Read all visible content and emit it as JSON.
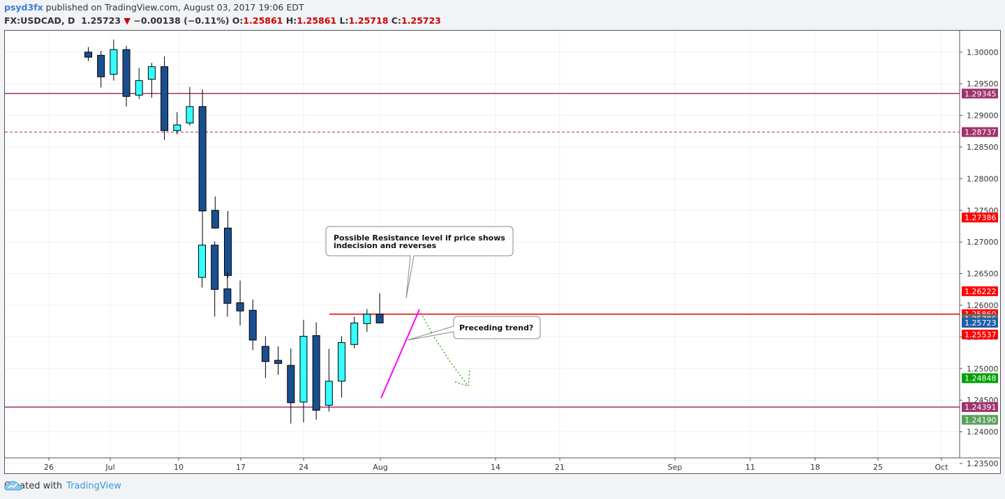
{
  "header": {
    "user": "psyd3fx",
    "published": "published on TradingView.com, August 03, 2017 19:06 EDT",
    "symbol": "FX:USDCAD, D",
    "last": "1.25723",
    "arrow": "▼",
    "change": "−0.00138 (−0.11%)",
    "o_label": "O:",
    "o": "1.25861",
    "h_label": "H:",
    "h": "1.25861",
    "l_label": "L:",
    "l": "1.25718",
    "c_label": "C:",
    "c": "1.25723"
  },
  "footer": {
    "created": "Created with",
    "brand": "TradingView",
    "logo_icon": "tradingview-cloud-icon"
  },
  "colors": {
    "bear": "#1a4f8f",
    "bull": "#33ffff",
    "support": "#a0336b",
    "resistance": "#e00000",
    "trend": "#ff00ff",
    "arrow": "#44aa22"
  },
  "chart_data": {
    "type": "candlestick",
    "ylim": [
      1.232,
      1.302
    ],
    "y_ticks": [
      "1.30000",
      "1.29500",
      "1.29000",
      "1.28500",
      "1.28000",
      "1.27500",
      "1.27000",
      "1.26500",
      "1.26000",
      "1.25500",
      "1.25000",
      "1.24500",
      "1.24000",
      "1.23500"
    ],
    "x_ticks": [
      "26",
      "Jul",
      "10",
      "17",
      "24",
      "Aug",
      "14",
      "21",
      "Sep",
      "11",
      "18",
      "25",
      "Oct"
    ],
    "candles": [
      {
        "o": 1.3,
        "h": 1.3008,
        "l": 1.2986,
        "c": 1.2992
      },
      {
        "o": 1.2995,
        "h": 1.3002,
        "l": 1.2944,
        "c": 1.2961
      },
      {
        "o": 1.2965,
        "h": 1.302,
        "l": 1.2955,
        "c": 1.3004
      },
      {
        "o": 1.3004,
        "h": 1.301,
        "l": 1.2914,
        "c": 1.293
      },
      {
        "o": 1.2932,
        "h": 1.2975,
        "l": 1.2926,
        "c": 1.2955
      },
      {
        "o": 1.2957,
        "h": 1.2983,
        "l": 1.2928,
        "c": 1.2977
      },
      {
        "o": 1.2977,
        "h": 1.2993,
        "l": 1.2861,
        "c": 1.2876
      },
      {
        "o": 1.2876,
        "h": 1.2905,
        "l": 1.287,
        "c": 1.2885
      },
      {
        "o": 1.2888,
        "h": 1.2945,
        "l": 1.2884,
        "c": 1.2914
      },
      {
        "o": 1.2914,
        "h": 1.2941,
        "l": 1.2679,
        "c": 1.2749
      },
      {
        "o": 1.275,
        "h": 1.2772,
        "l": 1.2721,
        "c": 1.2722
      },
      {
        "o": 1.2722,
        "h": 1.2749,
        "l": 1.2643,
        "c": 1.2647
      },
      {
        "o": 1.2644,
        "h": 1.2696,
        "l": 1.2628,
        "c": 1.2695
      },
      {
        "o": 1.2695,
        "h": 1.2701,
        "l": 1.2582,
        "c": 1.2625
      },
      {
        "o": 1.2626,
        "h": 1.2652,
        "l": 1.2582,
        "c": 1.2603
      },
      {
        "o": 1.2604,
        "h": 1.2639,
        "l": 1.2568,
        "c": 1.2591
      },
      {
        "o": 1.2592,
        "h": 1.2609,
        "l": 1.2529,
        "c": 1.2545
      },
      {
        "o": 1.2535,
        "h": 1.2551,
        "l": 1.2485,
        "c": 1.2511
      },
      {
        "o": 1.2513,
        "h": 1.2535,
        "l": 1.249,
        "c": 1.2508
      },
      {
        "o": 1.2505,
        "h": 1.2532,
        "l": 1.2413,
        "c": 1.2446
      },
      {
        "o": 1.2447,
        "h": 1.2577,
        "l": 1.2415,
        "c": 1.2551
      },
      {
        "o": 1.2552,
        "h": 1.2573,
        "l": 1.2419,
        "c": 1.2434
      },
      {
        "o": 1.2442,
        "h": 1.2531,
        "l": 1.2432,
        "c": 1.248
      },
      {
        "o": 1.248,
        "h": 1.2551,
        "l": 1.2454,
        "c": 1.2541
      },
      {
        "o": 1.2538,
        "h": 1.2582,
        "l": 1.2532,
        "c": 1.2572
      },
      {
        "o": 1.2571,
        "h": 1.2594,
        "l": 1.2558,
        "c": 1.2586
      },
      {
        "o": 1.2586,
        "h": 1.2619,
        "l": 1.2572,
        "c": 1.2572
      }
    ],
    "horizontal_lines": [
      {
        "name": "support-top",
        "value": 1.29345,
        "style": "solid",
        "color": "#a0336b"
      },
      {
        "name": "dashed-level",
        "value": 1.28737,
        "style": "dashed",
        "color": "#a0336b"
      },
      {
        "name": "support-bottom",
        "value": 1.24391,
        "style": "solid",
        "color": "#a0336b"
      },
      {
        "name": "resistance",
        "value": 1.2586,
        "style": "solid",
        "color": "#e00000"
      }
    ],
    "price_labels": [
      {
        "text": "1.29345",
        "value": 1.29345,
        "color": "#a0336b"
      },
      {
        "text": "1.28737",
        "value": 1.28737,
        "color": "#a0336b"
      },
      {
        "text": "1.27386",
        "value": 1.27386,
        "color": "#ff0000"
      },
      {
        "text": "1.26222",
        "value": 1.26222,
        "color": "#ff0000"
      },
      {
        "text": "1.25860",
        "value": 1.2586,
        "color": "#ff0000"
      },
      {
        "text": "1.25786",
        "value": 1.25786,
        "color": "#666666"
      },
      {
        "text": "1.25723",
        "value": 1.25723,
        "color": "#1e5ea8"
      },
      {
        "text": "1.25537",
        "value": 1.25537,
        "color": "#ff0000"
      },
      {
        "text": "1.24848",
        "value": 1.24848,
        "color": "#00a000"
      },
      {
        "text": "1.24391",
        "value": 1.24391,
        "color": "#a0336b"
      },
      {
        "text": "1.24190",
        "value": 1.2419,
        "color": "#5aa05a"
      }
    ],
    "annotations": [
      {
        "name": "resistance-callout",
        "text": [
          "Possible Resistance level if price shows",
          "indecision and reverses"
        ]
      },
      {
        "name": "trend-callout",
        "text": [
          "Preceding trend?"
        ]
      }
    ]
  }
}
